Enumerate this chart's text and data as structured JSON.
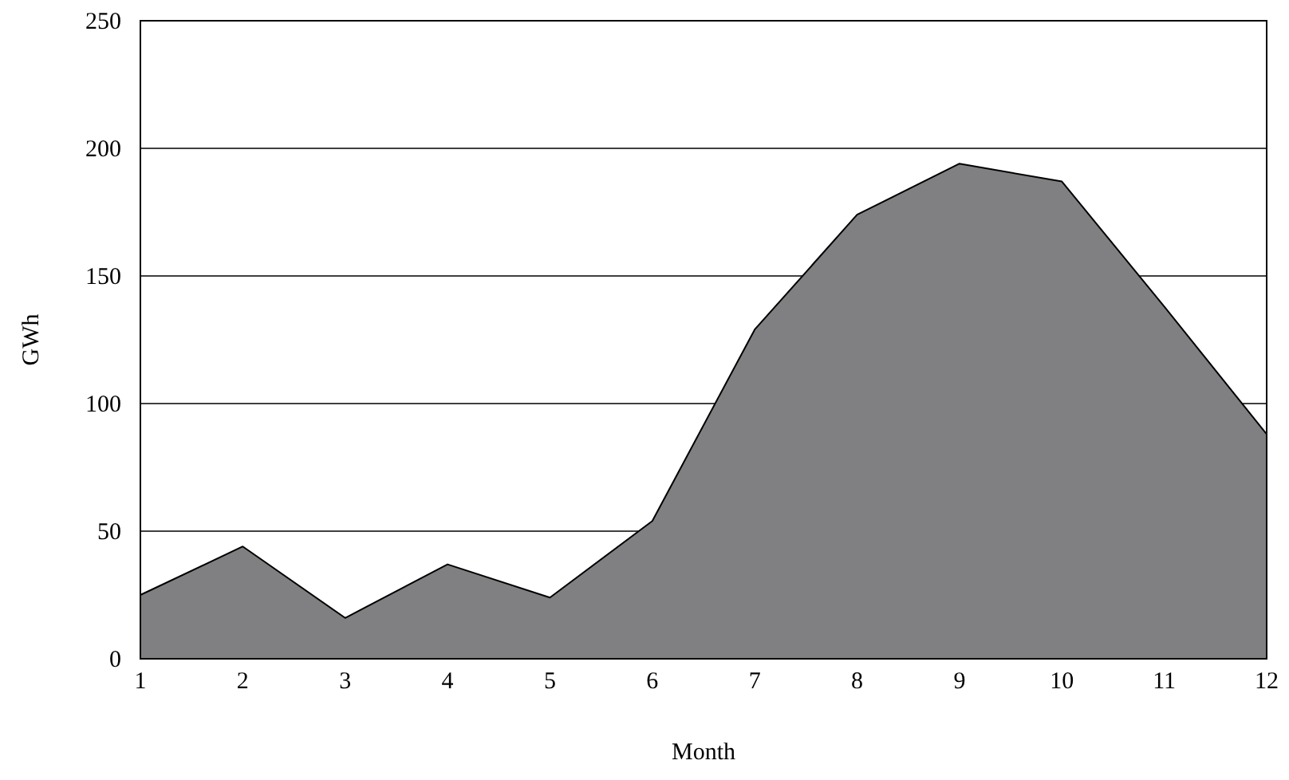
{
  "chart_data": {
    "type": "area",
    "xlabel": "Month",
    "ylabel": "GWh",
    "x": [
      1,
      2,
      3,
      4,
      5,
      6,
      7,
      8,
      9,
      10,
      11,
      12
    ],
    "series": [
      {
        "color": "#808083",
        "values": [
          25,
          44,
          16,
          37,
          24,
          54,
          129,
          174,
          194,
          187,
          138,
          88
        ]
      }
    ],
    "xlim": [
      1,
      12
    ],
    "xticks": [
      1,
      2,
      3,
      4,
      5,
      6,
      7,
      8,
      9,
      10,
      11,
      12
    ],
    "ylim": [
      0,
      250
    ],
    "yticks": [
      0,
      50,
      100,
      150,
      200,
      250
    ],
    "grid": "y"
  }
}
